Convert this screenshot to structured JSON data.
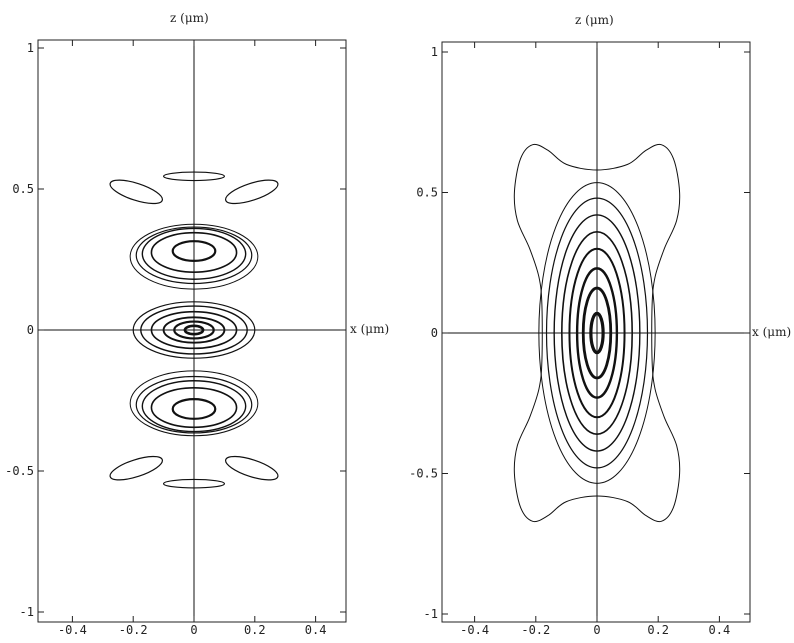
{
  "chart_data": [
    {
      "type": "contour",
      "xlabel": "x (μm)",
      "ylabel": "z (μm)",
      "xlim": [
        -0.5,
        0.5
      ],
      "ylim": [
        -1.05,
        1.05
      ],
      "xticks": [
        "-0.4",
        "-0.2",
        "0",
        "0.2",
        "0.4"
      ],
      "xtick_values": [
        -0.4,
        -0.2,
        0,
        0.2,
        0.4
      ],
      "yticks": [
        "1",
        "0.5",
        "0",
        "-0.5",
        "-1"
      ],
      "ytick_values": [
        1,
        0.5,
        0,
        -0.5,
        -1
      ],
      "contours": [
        {
          "cx": 0,
          "cz": 0,
          "rx": 0.03,
          "rz": 0.015,
          "w": 2.6
        },
        {
          "cx": 0,
          "cz": 0,
          "rx": 0.065,
          "rz": 0.03,
          "w": 2.2
        },
        {
          "cx": 0,
          "cz": 0,
          "rx": 0.1,
          "rz": 0.045,
          "w": 1.9
        },
        {
          "cx": 0,
          "cz": 0,
          "rx": 0.14,
          "rz": 0.065,
          "w": 1.6
        },
        {
          "cx": 0,
          "cz": 0,
          "rx": 0.175,
          "rz": 0.085,
          "w": 1.4
        },
        {
          "cx": 0,
          "cz": 0,
          "rx": 0.2,
          "rz": 0.1,
          "w": 1.2
        },
        {
          "cx": 0,
          "cz": 0.28,
          "rx": 0.07,
          "rz": 0.035,
          "w": 2.2
        },
        {
          "cx": 0,
          "cz": 0.275,
          "rx": 0.14,
          "rz": 0.07,
          "w": 1.6
        },
        {
          "cx": 0,
          "cz": 0.27,
          "rx": 0.17,
          "rz": 0.09,
          "w": 1.4
        },
        {
          "cx": 0,
          "cz": 0.265,
          "rx": 0.19,
          "rz": 0.1,
          "w": 1.2
        },
        {
          "cx": 0,
          "cz": 0.26,
          "rx": 0.21,
          "rz": 0.115,
          "w": 1.0
        },
        {
          "cx": 0,
          "cz": -0.28,
          "rx": 0.07,
          "rz": 0.035,
          "w": 2.2
        },
        {
          "cx": 0,
          "cz": -0.275,
          "rx": 0.14,
          "rz": 0.07,
          "w": 1.6
        },
        {
          "cx": 0,
          "cz": -0.27,
          "rx": 0.17,
          "rz": 0.09,
          "w": 1.4
        },
        {
          "cx": 0,
          "cz": -0.265,
          "rx": 0.19,
          "rz": 0.1,
          "w": 1.2
        },
        {
          "cx": 0,
          "cz": -0.26,
          "rx": 0.21,
          "rz": 0.115,
          "w": 1.0
        },
        {
          "cx": 0,
          "cz": 0.545,
          "rx": 0.1,
          "rz": 0.015,
          "w": 1.2
        },
        {
          "cx": -0.19,
          "cz": 0.49,
          "rx": 0.09,
          "rz": 0.03,
          "w": 1.2,
          "rot": -18
        },
        {
          "cx": 0.19,
          "cz": 0.49,
          "rx": 0.09,
          "rz": 0.03,
          "w": 1.2,
          "rot": 18
        },
        {
          "cx": 0,
          "cz": -0.545,
          "rx": 0.1,
          "rz": 0.015,
          "w": 1.2
        },
        {
          "cx": -0.19,
          "cz": -0.49,
          "rx": 0.09,
          "rz": 0.03,
          "w": 1.2,
          "rot": 18
        },
        {
          "cx": 0.19,
          "cz": -0.49,
          "rx": 0.09,
          "rz": 0.03,
          "w": 1.2,
          "rot": -18
        }
      ]
    },
    {
      "type": "contour",
      "xlabel": "x (μm)",
      "ylabel": "z (μm)",
      "xlim": [
        -0.5,
        0.5
      ],
      "ylim": [
        -1.05,
        1.05
      ],
      "xticks": [
        "-0.4",
        "-0.2",
        "0",
        "0.2",
        "0.4"
      ],
      "xtick_values": [
        -0.4,
        -0.2,
        0,
        0.2,
        0.4
      ],
      "yticks": [
        "1",
        "0.5",
        "0",
        "-0.5",
        "-1"
      ],
      "ytick_values": [
        1,
        0.5,
        0,
        -0.5,
        -1
      ],
      "contours": [
        {
          "cx": 0,
          "cz": 0,
          "rx": 0.02,
          "rz": 0.07,
          "w": 3.2
        },
        {
          "cx": 0,
          "cz": 0,
          "rx": 0.045,
          "rz": 0.16,
          "w": 2.8
        },
        {
          "cx": 0,
          "cz": 0,
          "rx": 0.065,
          "rz": 0.23,
          "w": 2.4
        },
        {
          "cx": 0,
          "cz": 0,
          "rx": 0.09,
          "rz": 0.3,
          "w": 2.0
        },
        {
          "cx": 0,
          "cz": 0,
          "rx": 0.115,
          "rz": 0.36,
          "w": 1.6
        },
        {
          "cx": 0,
          "cz": 0,
          "rx": 0.14,
          "rz": 0.42,
          "w": 1.4
        },
        {
          "cx": 0,
          "cz": 0,
          "rx": 0.165,
          "rz": 0.48,
          "w": 1.2
        },
        {
          "cx": 0,
          "cz": 0,
          "rx": 0.19,
          "rz": 0.535,
          "w": 1.0
        }
      ],
      "outer_contour": {
        "x_points": [
          0.0,
          0.1,
          0.16,
          0.21,
          0.25,
          0.27,
          0.26,
          0.22,
          0.19,
          0.18,
          0.18,
          0.19,
          0.22,
          0.26,
          0.27,
          0.25,
          0.21,
          0.16,
          0.1,
          0.0,
          -0.1,
          -0.16,
          -0.21,
          -0.25,
          -0.27,
          -0.26,
          -0.22,
          -0.19,
          -0.18,
          -0.18,
          -0.19,
          -0.22,
          -0.26,
          -0.27,
          -0.25,
          -0.21,
          -0.16,
          -0.1
        ],
        "z_points": [
          0.58,
          0.6,
          0.65,
          0.67,
          0.62,
          0.5,
          0.4,
          0.3,
          0.2,
          0.1,
          -0.1,
          -0.2,
          -0.3,
          -0.4,
          -0.5,
          -0.62,
          -0.67,
          -0.65,
          -0.6,
          -0.58,
          -0.6,
          -0.65,
          -0.67,
          -0.62,
          -0.5,
          -0.4,
          -0.3,
          -0.2,
          -0.1,
          0.1,
          0.2,
          0.3,
          0.4,
          0.5,
          0.62,
          0.67,
          0.65,
          0.6
        ],
        "w": 1.0
      }
    }
  ],
  "panels": [
    {
      "xlabel": "x (μm)",
      "ylabel": "z (μm)"
    },
    {
      "xlabel": "x (μm)",
      "ylabel": "z (μm)"
    }
  ]
}
